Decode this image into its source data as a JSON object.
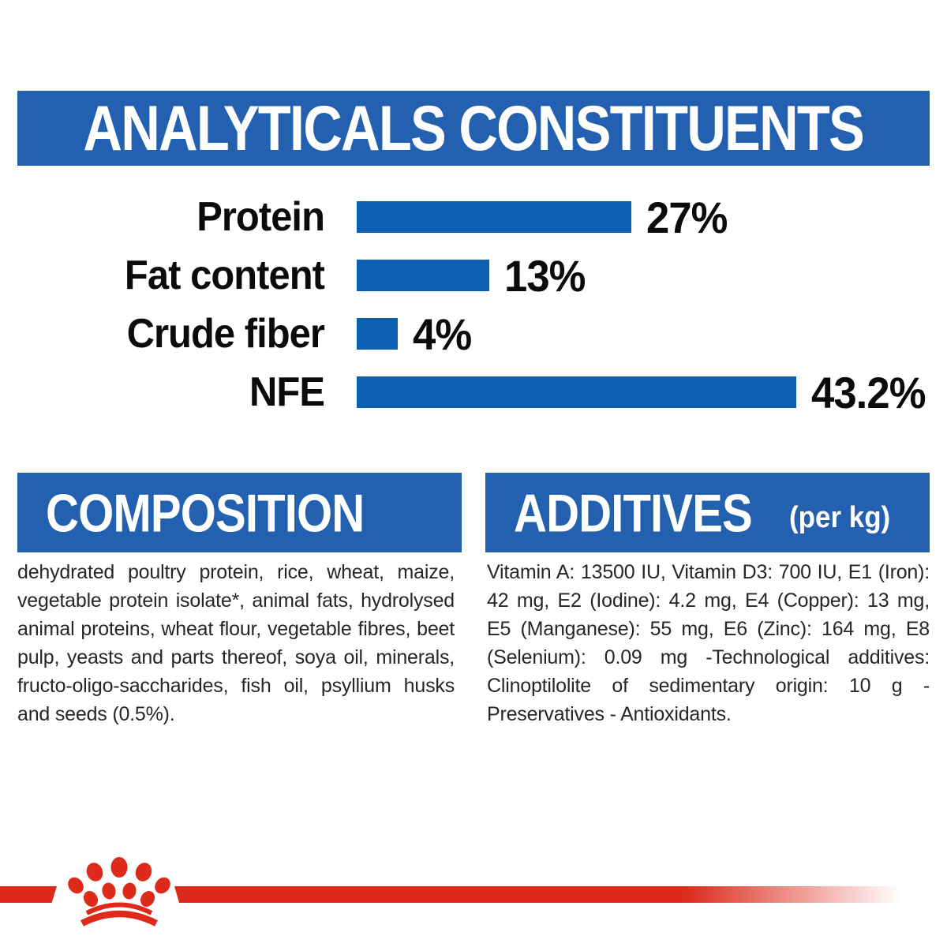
{
  "header": {
    "title": "ANALYTICALS CONSTITUENTS"
  },
  "chart_data": {
    "type": "bar",
    "orientation": "horizontal",
    "title": "ANALYTICALS CONSTITUENTS",
    "categories": [
      "Protein",
      "Fat content",
      "Crude fiber",
      "NFE"
    ],
    "values": [
      27,
      13,
      4,
      43.2
    ],
    "value_labels": [
      "27%",
      "13%",
      "4%",
      "43.2%"
    ],
    "unit": "%",
    "xlim": [
      0,
      45
    ],
    "grid": false,
    "legend": false
  },
  "sections": {
    "composition": {
      "title": "COMPOSITION",
      "body": "dehydrated poultry protein, rice, wheat, maize, vegetable protein isolate*, animal fats, hydrolysed animal proteins, wheat flour, vegetable fibres, beet pulp, yeasts and parts thereof, soya oil, minerals, fructo-oligo-saccharides, fish oil, psyllium husks and seeds (0.5%)."
    },
    "additives": {
      "title": "ADDITIVES",
      "subtitle": "(per kg)",
      "body": "Vitamin A: 13500 IU, Vitamin D3: 700 IU, E1 (Iron): 42 mg, E2 (Iodine): 4.2 mg, E4 (Copper): 13 mg, E5 (Manganese): 55 mg, E6 (Zinc): 164 mg, E8 (Selenium): 0.09 mg -Technological additives: Clinoptilolite of sedimentary origin: 10 g - Preservatives - Antioxidants."
    }
  },
  "footer": {
    "logo": "royal-canin-crown-icon"
  },
  "colors": {
    "banner_blue": "#2360AF",
    "bar_blue": "#0D5FB4",
    "brand_red": "#DD2A1B",
    "text_black": "#262626"
  }
}
